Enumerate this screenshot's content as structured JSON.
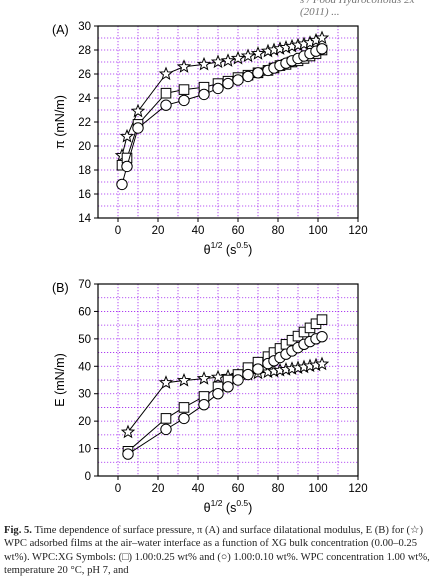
{
  "header_fragment": "s / Food Hydrocolloids 2x (2011) ...",
  "caption": {
    "figno": "Fig. 5.",
    "text": "Time dependence of surface pressure, π (A) and surface dilatational modulus, E (B) for (☆) WPC adsorbed films at the air–water interface as a function of XG bulk concentration (0.00–0.25 wt%). WPC:XG Symbols: (□) 1.00:0.25 wt% and (○) 1.00:0.10 wt%. WPC concentration 1.00 wt%, temperature 20 °C, pH 7, and"
  },
  "colors": {
    "grid": "#a020f0",
    "axis": "#000000",
    "marker": "#000000"
  },
  "chart_data": [
    {
      "type": "line",
      "panel_label": "(A)",
      "xlabel": "θ1/2 (s0.5)",
      "ylabel": "π (mN/m)",
      "xlim": [
        -10,
        120
      ],
      "ylim": [
        14,
        30
      ],
      "xticks": [
        0,
        20,
        40,
        60,
        80,
        100,
        120
      ],
      "yticks": [
        14,
        16,
        18,
        20,
        22,
        24,
        26,
        28,
        30
      ],
      "grid": true,
      "series": [
        {
          "marker": "star",
          "x": [
            2,
            4.5,
            10,
            24,
            33,
            43,
            50,
            55,
            60,
            65,
            70,
            75,
            78,
            81,
            84,
            87,
            90,
            93,
            96,
            99,
            102
          ],
          "y": [
            19.2,
            20.8,
            22.9,
            26.0,
            26.6,
            26.8,
            27.0,
            27.1,
            27.3,
            27.5,
            27.7,
            27.9,
            28.0,
            28.1,
            28.2,
            28.3,
            28.4,
            28.5,
            28.6,
            28.8,
            29.0
          ]
        },
        {
          "marker": "square",
          "x": [
            2,
            4.5,
            10,
            24,
            33,
            43,
            50,
            55,
            60,
            65,
            70,
            75,
            78,
            81,
            84,
            87,
            90,
            93,
            96,
            99,
            102
          ],
          "y": [
            18.4,
            19.0,
            21.8,
            24.4,
            24.7,
            24.9,
            25.2,
            25.4,
            25.7,
            25.9,
            26.1,
            26.3,
            26.5,
            26.7,
            26.8,
            27.0,
            27.1,
            27.3,
            27.5,
            27.7,
            28.0
          ]
        },
        {
          "marker": "circle",
          "x": [
            2,
            4.5,
            10,
            24,
            33,
            43,
            50,
            55,
            60,
            65,
            70,
            75,
            78,
            81,
            84,
            87,
            90,
            93,
            96,
            99,
            102
          ],
          "y": [
            16.8,
            18.3,
            21.5,
            23.4,
            23.8,
            24.3,
            24.8,
            25.2,
            25.5,
            25.8,
            26.1,
            26.3,
            26.5,
            26.7,
            26.9,
            27.1,
            27.3,
            27.5,
            27.7,
            27.9,
            28.1
          ]
        }
      ]
    },
    {
      "type": "line",
      "panel_label": "(B)",
      "xlabel": "θ1/2 (s0.5)",
      "ylabel": "E (mN/m)",
      "xlim": [
        -10,
        120
      ],
      "ylim": [
        0,
        70
      ],
      "xticks": [
        0,
        20,
        40,
        60,
        80,
        100,
        120
      ],
      "yticks": [
        0,
        10,
        20,
        30,
        40,
        50,
        60,
        70
      ],
      "grid": true,
      "series": [
        {
          "marker": "star",
          "x": [
            5,
            24,
            33,
            43,
            50,
            55,
            60,
            65,
            70,
            75,
            78,
            81,
            84,
            87,
            90,
            93,
            96,
            99,
            102
          ],
          "y": [
            16,
            34,
            34.8,
            35.5,
            36,
            36.3,
            36.7,
            37.1,
            37.5,
            37.9,
            38.2,
            38.5,
            38.8,
            39.1,
            39.4,
            39.7,
            40.1,
            40.4,
            40.8
          ]
        },
        {
          "marker": "square",
          "x": [
            5,
            24,
            33,
            43,
            50,
            55,
            60,
            65,
            70,
            75,
            78,
            81,
            84,
            87,
            90,
            93,
            96,
            99,
            102
          ],
          "y": [
            9,
            21,
            25,
            29,
            32.5,
            35,
            37,
            39.5,
            41.5,
            43.5,
            45,
            46.5,
            48,
            49.5,
            51,
            52.5,
            54,
            55.5,
            57
          ]
        },
        {
          "marker": "circle",
          "x": [
            5,
            24,
            33,
            43,
            50,
            55,
            60,
            65,
            70,
            75,
            78,
            81,
            84,
            87,
            90,
            93,
            96,
            99,
            102
          ],
          "y": [
            8,
            17,
            21,
            26,
            30,
            32.5,
            35,
            37,
            39,
            41,
            42,
            43.2,
            44.4,
            45.6,
            46.8,
            48,
            49,
            50,
            50.8
          ]
        }
      ]
    }
  ]
}
